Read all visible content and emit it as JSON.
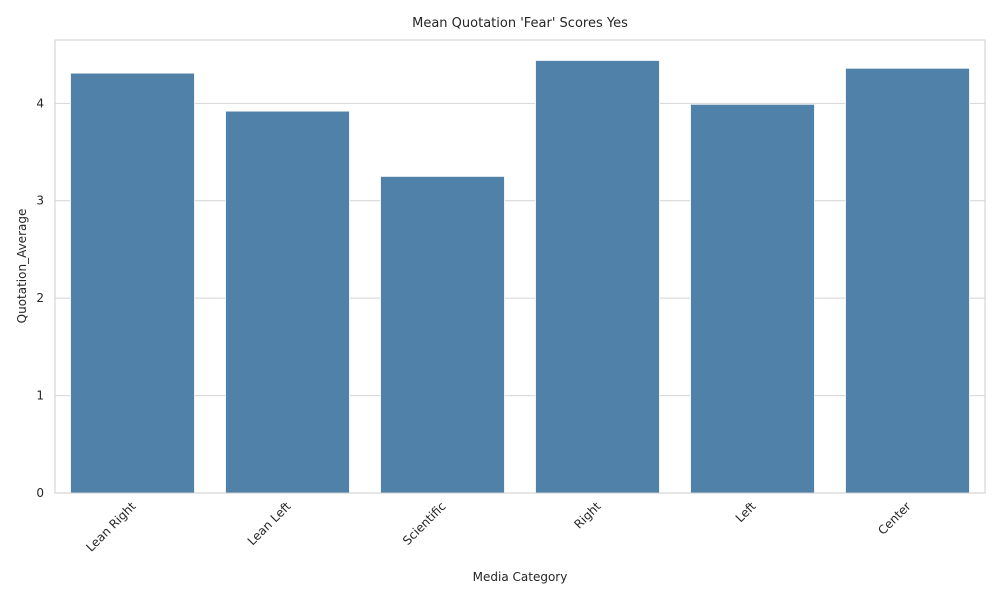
{
  "chart_data": {
    "type": "bar",
    "title": "Mean Quotation 'Fear' Scores Yes",
    "xlabel": "Media Category",
    "ylabel": "Quotation_Average",
    "categories": [
      "Lean Right",
      "Lean Left",
      "Scientific",
      "Right",
      "Left",
      "Center"
    ],
    "values": [
      4.31,
      3.92,
      3.25,
      4.44,
      3.99,
      4.36
    ],
    "ylim": [
      0,
      4.65
    ],
    "yticks": [
      "0",
      "1",
      "2",
      "3",
      "4"
    ],
    "grid": "horizontal",
    "bar_color": "#4f81a9",
    "tick_rotation": "45"
  }
}
